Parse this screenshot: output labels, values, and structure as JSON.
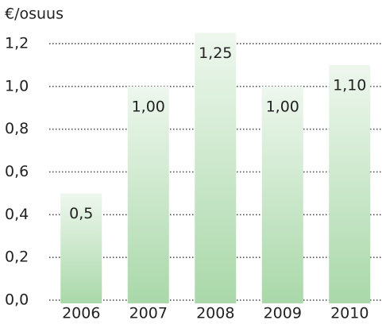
{
  "chart_data": {
    "type": "bar",
    "y_label": "€/osuus",
    "categories": [
      "2006",
      "2007",
      "2008",
      "2009",
      "2010"
    ],
    "values": [
      0.5,
      1.0,
      1.25,
      1.0,
      1.1
    ],
    "value_labels": [
      "0,5",
      "1,00",
      "1,25",
      "1,00",
      "1,10"
    ],
    "color": "#a9d8a9",
    "ylim": [
      0,
      1.2
    ],
    "yticks": [
      {
        "value": 0,
        "label": "0,0"
      },
      {
        "value": 0.2,
        "label": "0,2"
      },
      {
        "value": 0.4,
        "label": "0,4"
      },
      {
        "value": 0.6,
        "label": "0,6"
      },
      {
        "value": 0.8,
        "label": "0,8"
      },
      {
        "value": 1.0,
        "label": "1,0"
      },
      {
        "value": 1.2,
        "label": "1,2"
      }
    ],
    "grid": true
  }
}
